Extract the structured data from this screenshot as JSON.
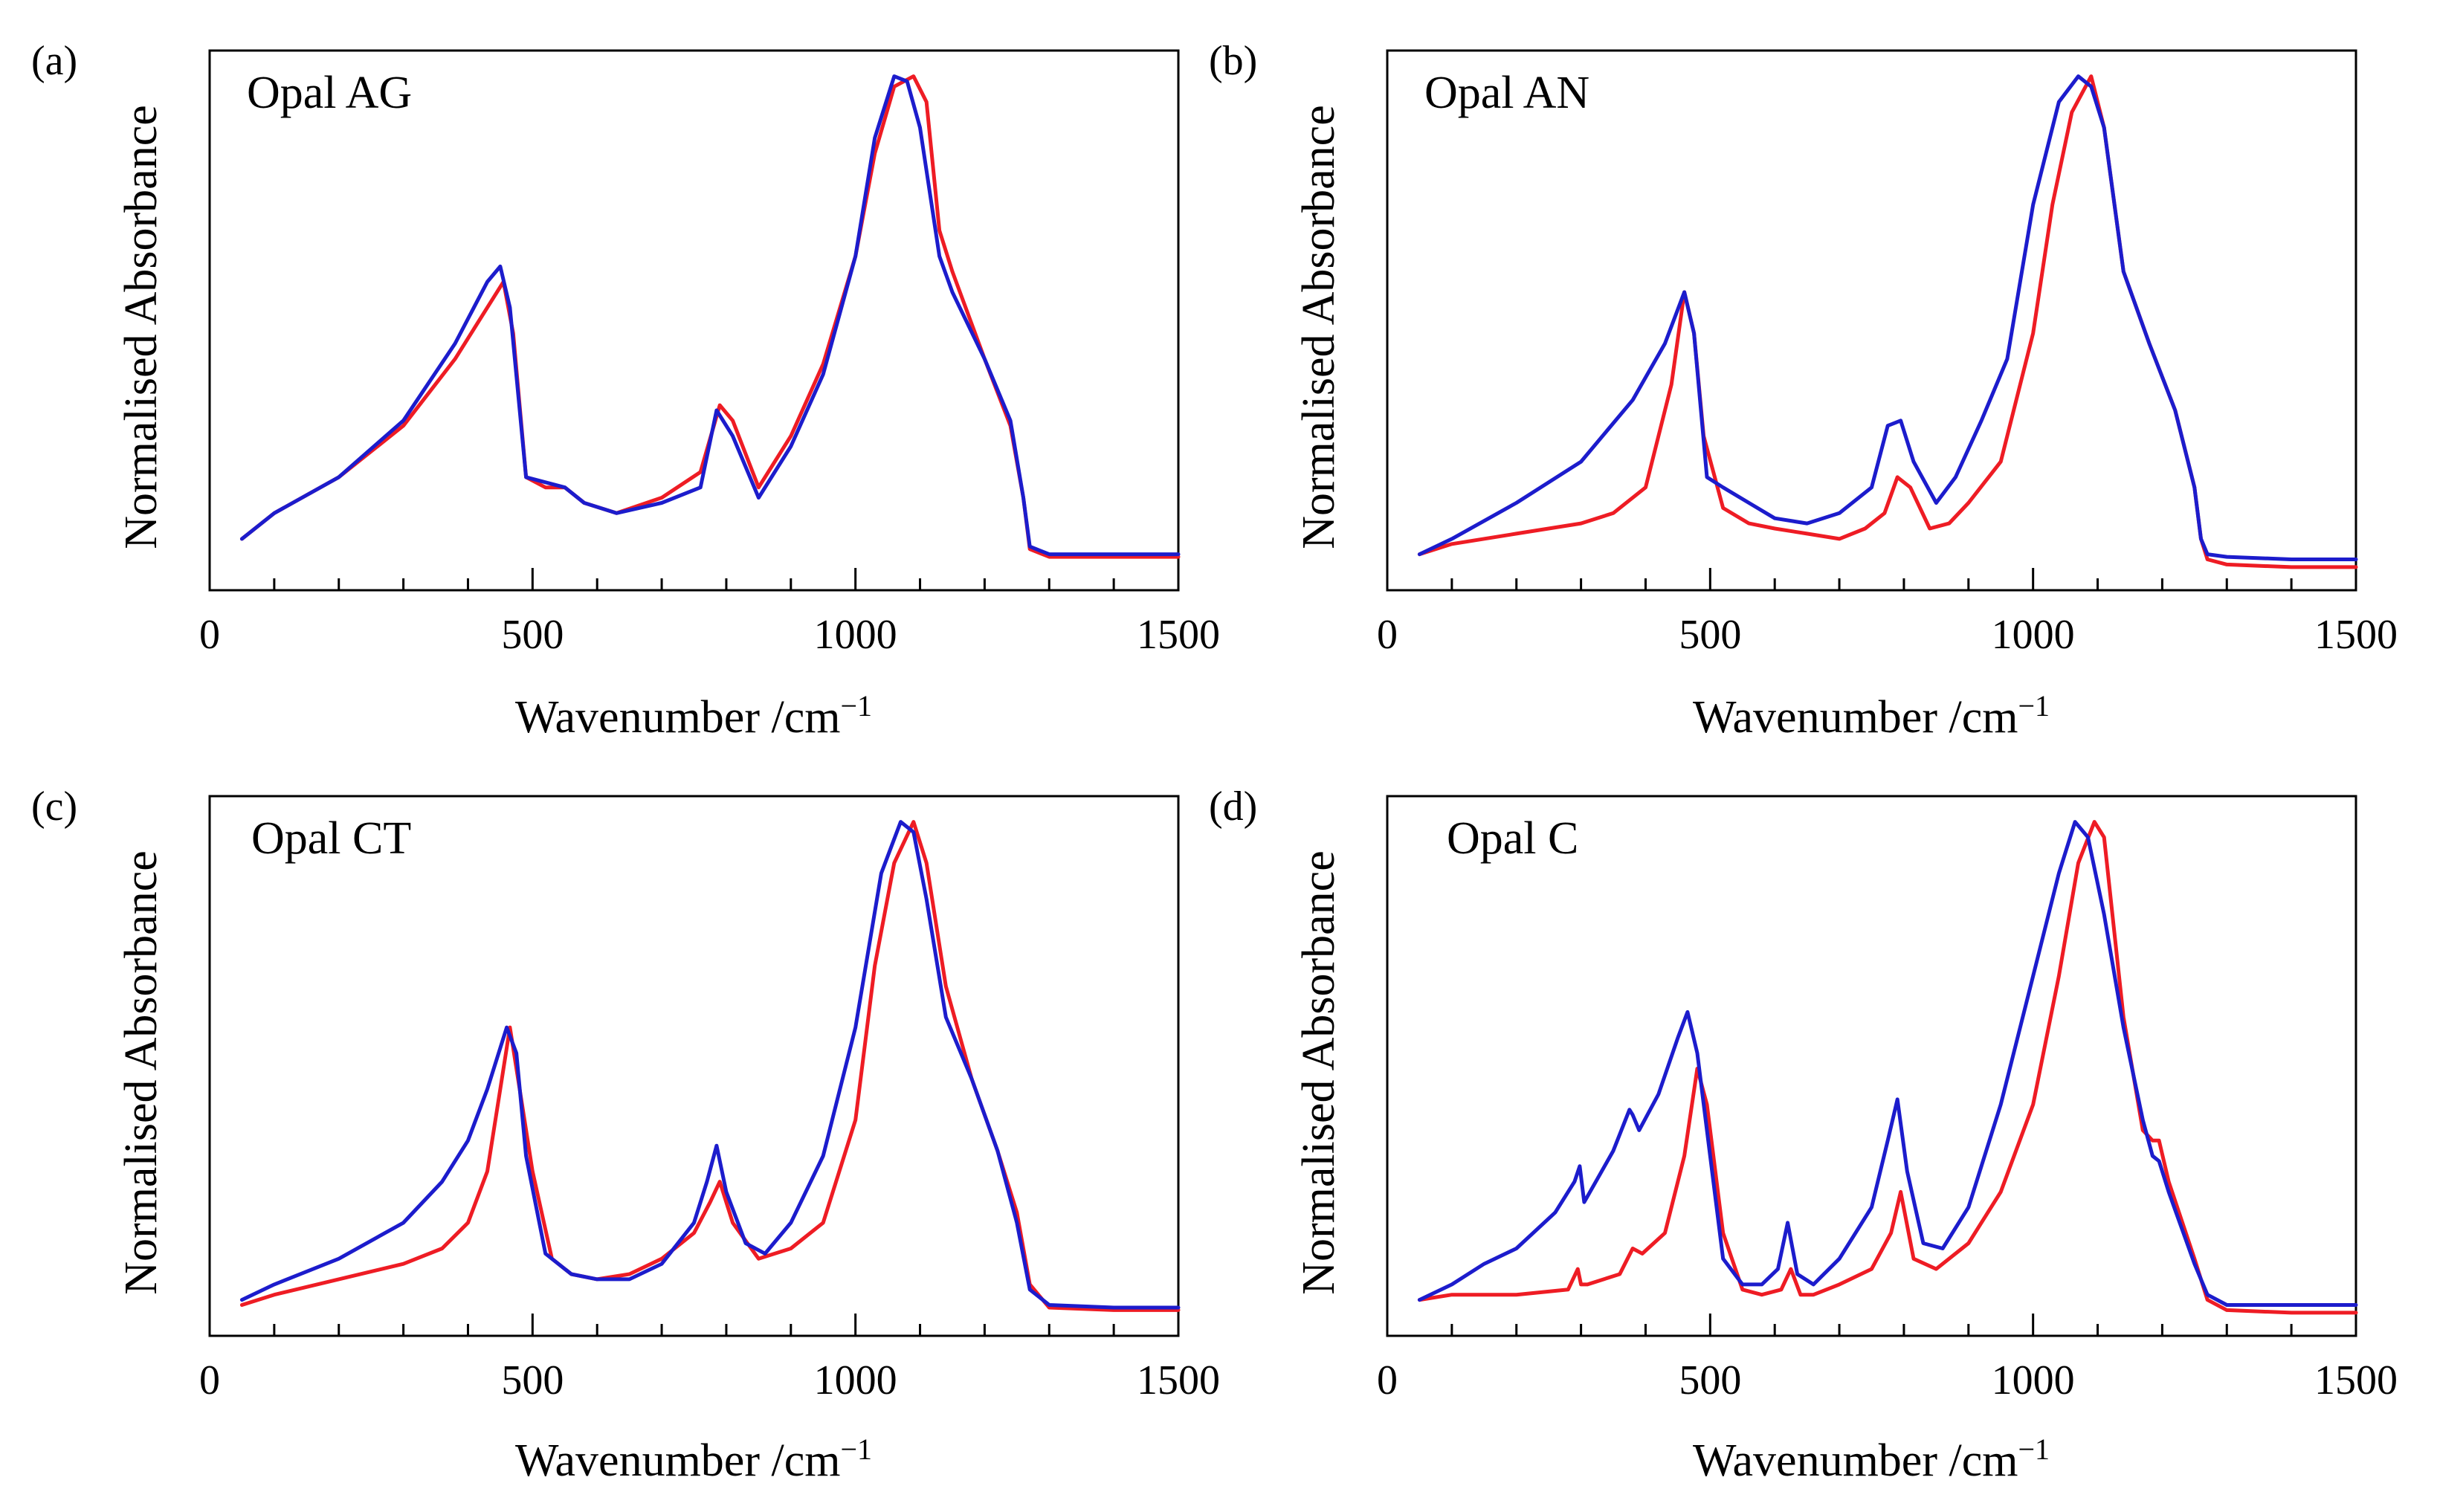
{
  "chart_data": [
    {
      "panel_letter": "(a)",
      "title": "Opal AG",
      "type": "line",
      "xlabel": "Wavenumber /cm",
      "xlabel_sup": "−1",
      "ylabel": "Normalised Absorbance",
      "xlim": [
        0,
        1500
      ],
      "ylim": [
        0,
        1.05
      ],
      "xticks": [
        "0",
        "500",
        "1000",
        "1500"
      ],
      "series": [
        {
          "name": "red",
          "color": "#ee1c24",
          "x": [
            50,
            100,
            200,
            300,
            380,
            430,
            455,
            470,
            490,
            520,
            550,
            580,
            630,
            700,
            760,
            790,
            810,
            850,
            900,
            950,
            1000,
            1030,
            1060,
            1090,
            1110,
            1130,
            1150,
            1200,
            1240,
            1260,
            1270,
            1300,
            1400,
            1500
          ],
          "y": [
            0.1,
            0.15,
            0.22,
            0.32,
            0.45,
            0.55,
            0.6,
            0.5,
            0.22,
            0.2,
            0.2,
            0.17,
            0.15,
            0.18,
            0.23,
            0.36,
            0.33,
            0.2,
            0.3,
            0.44,
            0.65,
            0.85,
            0.98,
            1.0,
            0.95,
            0.7,
            0.62,
            0.45,
            0.32,
            0.18,
            0.08,
            0.065,
            0.065,
            0.065
          ]
        },
        {
          "name": "blue",
          "color": "#1c1ccc",
          "x": [
            50,
            100,
            200,
            300,
            380,
            430,
            450,
            465,
            490,
            520,
            550,
            580,
            630,
            700,
            760,
            785,
            810,
            850,
            900,
            950,
            1000,
            1030,
            1060,
            1080,
            1100,
            1130,
            1150,
            1200,
            1240,
            1260,
            1270,
            1300,
            1400,
            1500
          ],
          "y": [
            0.1,
            0.15,
            0.22,
            0.33,
            0.48,
            0.6,
            0.63,
            0.55,
            0.22,
            0.21,
            0.2,
            0.17,
            0.15,
            0.17,
            0.2,
            0.35,
            0.3,
            0.18,
            0.28,
            0.42,
            0.65,
            0.88,
            1.0,
            0.99,
            0.9,
            0.65,
            0.58,
            0.45,
            0.33,
            0.18,
            0.085,
            0.07,
            0.07,
            0.07
          ]
        }
      ]
    },
    {
      "panel_letter": "(b)",
      "title": "Opal AN",
      "type": "line",
      "xlabel": "Wavenumber /cm",
      "xlabel_sup": "−1",
      "ylabel": "Normalised Absorbance",
      "xlim": [
        0,
        1500
      ],
      "ylim": [
        0,
        1.05
      ],
      "xticks": [
        "0",
        "500",
        "1000",
        "1500"
      ],
      "series": [
        {
          "name": "red",
          "color": "#ee1c24",
          "x": [
            50,
            100,
            200,
            300,
            350,
            400,
            440,
            460,
            475,
            490,
            520,
            560,
            600,
            650,
            700,
            740,
            770,
            790,
            810,
            840,
            870,
            900,
            950,
            1000,
            1030,
            1060,
            1090,
            1110,
            1140,
            1180,
            1220,
            1250,
            1260,
            1270,
            1300,
            1400,
            1500
          ],
          "y": [
            0.07,
            0.09,
            0.11,
            0.13,
            0.15,
            0.2,
            0.4,
            0.58,
            0.5,
            0.3,
            0.16,
            0.13,
            0.12,
            0.11,
            0.1,
            0.12,
            0.15,
            0.22,
            0.2,
            0.12,
            0.13,
            0.17,
            0.25,
            0.5,
            0.75,
            0.93,
            1.0,
            0.9,
            0.62,
            0.48,
            0.35,
            0.2,
            0.1,
            0.06,
            0.05,
            0.045,
            0.045
          ]
        },
        {
          "name": "blue",
          "color": "#1c1ccc",
          "x": [
            50,
            100,
            200,
            300,
            380,
            430,
            460,
            475,
            495,
            520,
            560,
            600,
            650,
            700,
            750,
            775,
            795,
            815,
            850,
            880,
            920,
            960,
            1000,
            1040,
            1070,
            1090,
            1110,
            1140,
            1180,
            1220,
            1250,
            1260,
            1270,
            1300,
            1400,
            1500
          ],
          "y": [
            0.07,
            0.1,
            0.17,
            0.25,
            0.37,
            0.48,
            0.58,
            0.5,
            0.22,
            0.2,
            0.17,
            0.14,
            0.13,
            0.15,
            0.2,
            0.32,
            0.33,
            0.25,
            0.17,
            0.22,
            0.33,
            0.45,
            0.75,
            0.95,
            1.0,
            0.98,
            0.9,
            0.62,
            0.48,
            0.35,
            0.2,
            0.1,
            0.07,
            0.065,
            0.06,
            0.06
          ]
        }
      ]
    },
    {
      "panel_letter": "(c)",
      "title": "Opal CT",
      "type": "line",
      "xlabel": "Wavenumber /cm",
      "xlabel_sup": "−1",
      "ylabel": "Normalised Absorbance",
      "xlim": [
        0,
        1500
      ],
      "ylim": [
        0,
        1.05
      ],
      "xticks": [
        "0",
        "500",
        "1000",
        "1500"
      ],
      "series": [
        {
          "name": "red",
          "color": "#ee1c24",
          "x": [
            50,
            100,
            200,
            300,
            360,
            400,
            430,
            450,
            465,
            480,
            500,
            530,
            560,
            600,
            650,
            700,
            750,
            775,
            790,
            810,
            850,
            900,
            950,
            1000,
            1030,
            1060,
            1090,
            1110,
            1140,
            1180,
            1220,
            1250,
            1270,
            1300,
            1400,
            1500
          ],
          "y": [
            0.06,
            0.08,
            0.11,
            0.14,
            0.17,
            0.22,
            0.32,
            0.48,
            0.6,
            0.48,
            0.32,
            0.15,
            0.12,
            0.11,
            0.12,
            0.15,
            0.2,
            0.26,
            0.3,
            0.22,
            0.15,
            0.17,
            0.22,
            0.42,
            0.72,
            0.92,
            1.0,
            0.92,
            0.68,
            0.5,
            0.36,
            0.24,
            0.1,
            0.055,
            0.05,
            0.05
          ]
        },
        {
          "name": "blue",
          "color": "#1c1ccc",
          "x": [
            50,
            100,
            200,
            300,
            360,
            400,
            430,
            460,
            475,
            490,
            520,
            560,
            600,
            650,
            700,
            750,
            770,
            785,
            800,
            830,
            860,
            900,
            950,
            1000,
            1040,
            1070,
            1090,
            1110,
            1140,
            1180,
            1220,
            1250,
            1270,
            1300,
            1400,
            1500
          ],
          "y": [
            0.07,
            0.1,
            0.15,
            0.22,
            0.3,
            0.38,
            0.48,
            0.6,
            0.55,
            0.35,
            0.16,
            0.12,
            0.11,
            0.11,
            0.14,
            0.22,
            0.3,
            0.37,
            0.28,
            0.18,
            0.16,
            0.22,
            0.35,
            0.6,
            0.9,
            1.0,
            0.98,
            0.85,
            0.62,
            0.5,
            0.36,
            0.22,
            0.09,
            0.06,
            0.055,
            0.055
          ]
        }
      ]
    },
    {
      "panel_letter": "(d)",
      "title": "Opal C",
      "type": "line",
      "xlabel": "Wavenumber /cm",
      "xlabel_sup": "−1",
      "ylabel": "Normalised Absorbance",
      "xlim": [
        0,
        1500
      ],
      "ylim": [
        0,
        1.05
      ],
      "xticks": [
        "0",
        "500",
        "1000",
        "1500"
      ],
      "series": [
        {
          "name": "red",
          "color": "#ee1c24",
          "x": [
            50,
            100,
            200,
            280,
            295,
            300,
            310,
            360,
            380,
            395,
            430,
            460,
            480,
            495,
            520,
            550,
            580,
            610,
            625,
            640,
            660,
            700,
            750,
            780,
            795,
            815,
            850,
            900,
            950,
            1000,
            1040,
            1070,
            1095,
            1110,
            1140,
            1170,
            1185,
            1195,
            1210,
            1250,
            1270,
            1300,
            1400,
            1500
          ],
          "y": [
            0.07,
            0.08,
            0.08,
            0.09,
            0.13,
            0.1,
            0.1,
            0.12,
            0.17,
            0.16,
            0.2,
            0.35,
            0.52,
            0.45,
            0.2,
            0.09,
            0.08,
            0.09,
            0.13,
            0.08,
            0.08,
            0.1,
            0.13,
            0.2,
            0.28,
            0.15,
            0.13,
            0.18,
            0.28,
            0.45,
            0.7,
            0.92,
            1.0,
            0.97,
            0.62,
            0.4,
            0.38,
            0.38,
            0.3,
            0.15,
            0.07,
            0.05,
            0.045,
            0.045
          ]
        },
        {
          "name": "blue",
          "color": "#1c1ccc",
          "x": [
            50,
            100,
            150,
            200,
            260,
            290,
            298,
            305,
            350,
            375,
            380,
            390,
            420,
            450,
            465,
            480,
            500,
            520,
            550,
            580,
            605,
            620,
            635,
            660,
            700,
            750,
            775,
            790,
            805,
            830,
            860,
            900,
            950,
            1000,
            1040,
            1065,
            1085,
            1110,
            1140,
            1170,
            1185,
            1195,
            1210,
            1250,
            1270,
            1300,
            1400,
            1500
          ],
          "y": [
            0.07,
            0.1,
            0.14,
            0.17,
            0.24,
            0.3,
            0.33,
            0.26,
            0.36,
            0.44,
            0.43,
            0.4,
            0.47,
            0.58,
            0.63,
            0.55,
            0.35,
            0.15,
            0.1,
            0.1,
            0.13,
            0.22,
            0.12,
            0.1,
            0.15,
            0.25,
            0.38,
            0.46,
            0.32,
            0.18,
            0.17,
            0.25,
            0.45,
            0.7,
            0.9,
            1.0,
            0.97,
            0.82,
            0.6,
            0.42,
            0.35,
            0.34,
            0.28,
            0.14,
            0.08,
            0.06,
            0.06,
            0.06
          ]
        }
      ]
    }
  ]
}
